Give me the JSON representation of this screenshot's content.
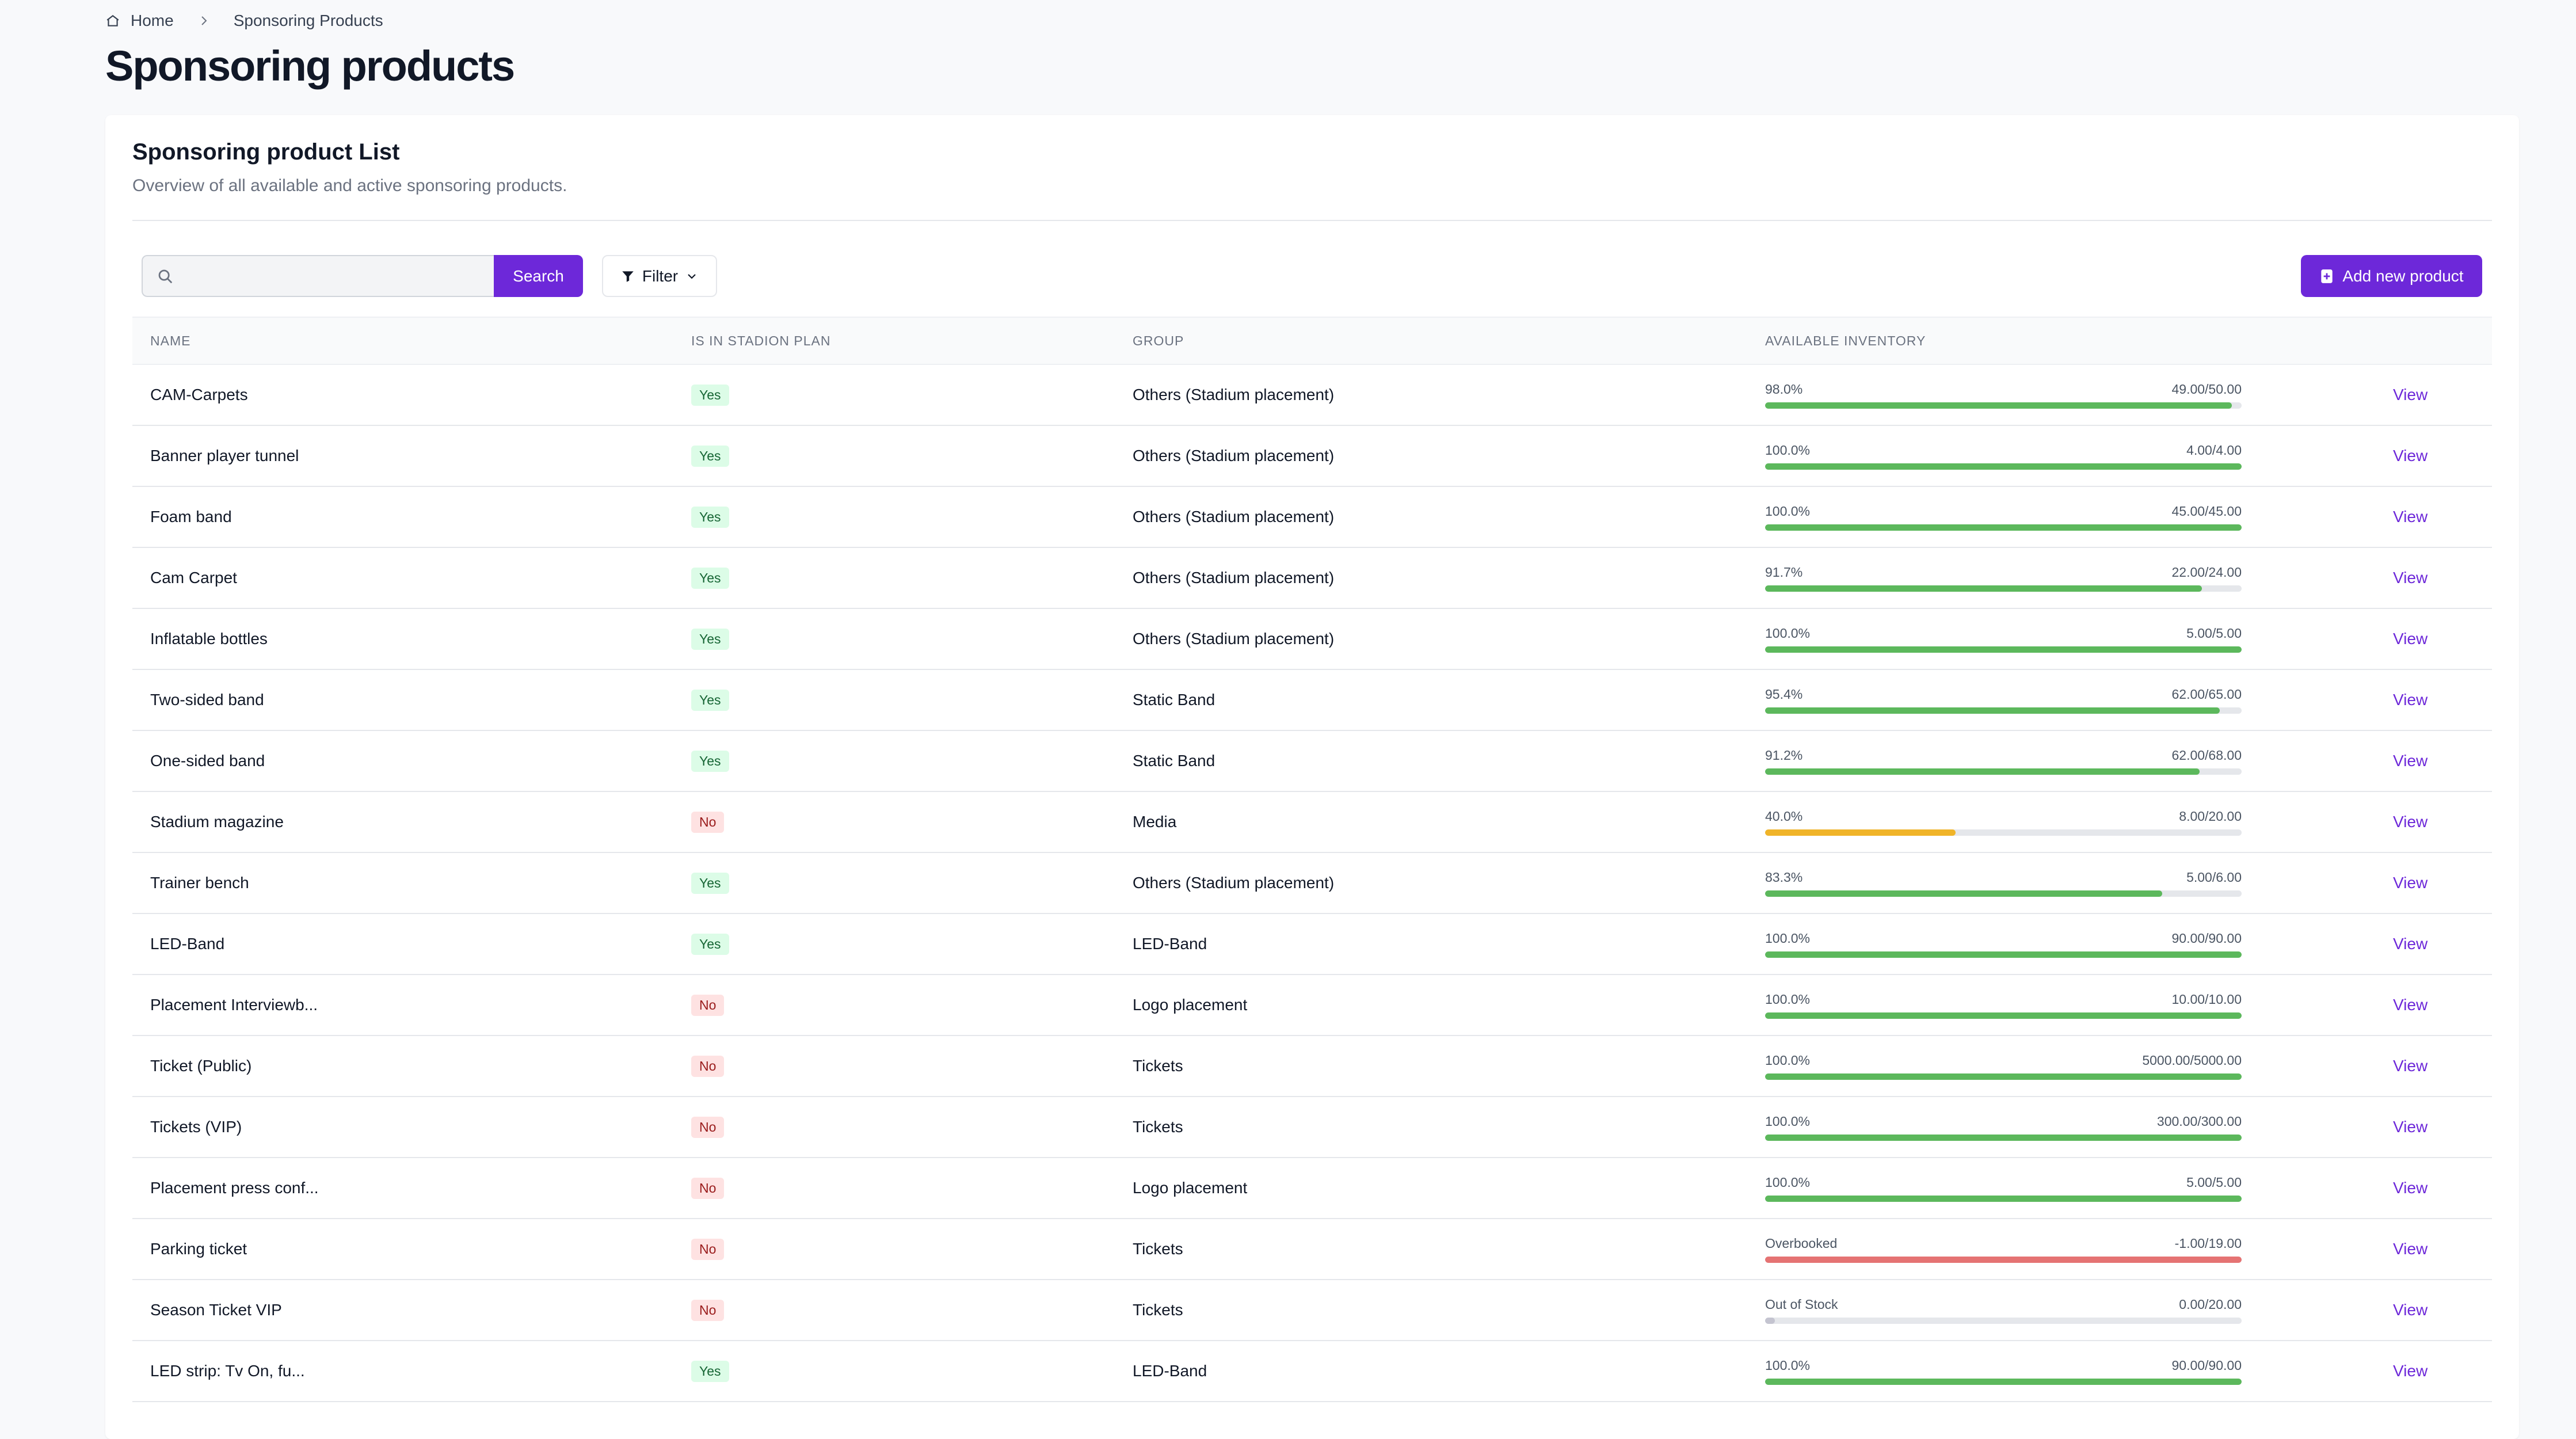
{
  "breadcrumb": {
    "home": "Home",
    "current": "Sponsoring Products"
  },
  "page": {
    "title": "Sponsoring products"
  },
  "card": {
    "title": "Sponsoring product List",
    "subtitle": "Overview of all available and active sponsoring products."
  },
  "toolbar": {
    "search_value": "",
    "search_label": "Search",
    "filter_label": "Filter",
    "add_label": "Add new product"
  },
  "colors": {
    "accent": "#6d28d9",
    "green": "#5cb85c",
    "yellow": "#f0b429",
    "red": "#e57373",
    "gray": "#c4c4d0"
  },
  "table": {
    "headers": {
      "name": "Name",
      "plan": "Is in stadion plan",
      "group": "Group",
      "inventory": "Available inventory"
    },
    "view_label": "View",
    "rows": [
      {
        "name": "CAM-Carpets",
        "plan": "Yes",
        "group": "Others (Stadium placement)",
        "pct_label": "98.0%",
        "qty": "49.00/50.00",
        "fill": 0.98,
        "status": "green"
      },
      {
        "name": "Banner player tunnel",
        "plan": "Yes",
        "group": "Others (Stadium placement)",
        "pct_label": "100.0%",
        "qty": "4.00/4.00",
        "fill": 1.0,
        "status": "green"
      },
      {
        "name": "Foam band",
        "plan": "Yes",
        "group": "Others (Stadium placement)",
        "pct_label": "100.0%",
        "qty": "45.00/45.00",
        "fill": 1.0,
        "status": "green"
      },
      {
        "name": "Cam Carpet",
        "plan": "Yes",
        "group": "Others (Stadium placement)",
        "pct_label": "91.7%",
        "qty": "22.00/24.00",
        "fill": 0.917,
        "status": "green"
      },
      {
        "name": "Inflatable bottles",
        "plan": "Yes",
        "group": "Others (Stadium placement)",
        "pct_label": "100.0%",
        "qty": "5.00/5.00",
        "fill": 1.0,
        "status": "green"
      },
      {
        "name": "Two-sided band",
        "plan": "Yes",
        "group": "Static Band",
        "pct_label": "95.4%",
        "qty": "62.00/65.00",
        "fill": 0.954,
        "status": "green"
      },
      {
        "name": "One-sided band",
        "plan": "Yes",
        "group": "Static Band",
        "pct_label": "91.2%",
        "qty": "62.00/68.00",
        "fill": 0.912,
        "status": "green"
      },
      {
        "name": "Stadium magazine",
        "plan": "No",
        "group": "Media",
        "pct_label": "40.0%",
        "qty": "8.00/20.00",
        "fill": 0.4,
        "status": "yellow"
      },
      {
        "name": "Trainer bench",
        "plan": "Yes",
        "group": "Others (Stadium placement)",
        "pct_label": "83.3%",
        "qty": "5.00/6.00",
        "fill": 0.833,
        "status": "green"
      },
      {
        "name": "LED-Band",
        "plan": "Yes",
        "group": "LED-Band",
        "pct_label": "100.0%",
        "qty": "90.00/90.00",
        "fill": 1.0,
        "status": "green"
      },
      {
        "name": "Placement Interviewb...",
        "plan": "No",
        "group": "Logo placement",
        "pct_label": "100.0%",
        "qty": "10.00/10.00",
        "fill": 1.0,
        "status": "green"
      },
      {
        "name": "Ticket (Public)",
        "plan": "No",
        "group": "Tickets",
        "pct_label": "100.0%",
        "qty": "5000.00/5000.00",
        "fill": 1.0,
        "status": "green"
      },
      {
        "name": "Tickets (VIP)",
        "plan": "No",
        "group": "Tickets",
        "pct_label": "100.0%",
        "qty": "300.00/300.00",
        "fill": 1.0,
        "status": "green"
      },
      {
        "name": "Placement press conf...",
        "plan": "No",
        "group": "Logo placement",
        "pct_label": "100.0%",
        "qty": "5.00/5.00",
        "fill": 1.0,
        "status": "green"
      },
      {
        "name": "Parking ticket",
        "plan": "No",
        "group": "Tickets",
        "pct_label": "Overbooked",
        "qty": "-1.00/19.00",
        "fill": 1.0,
        "status": "red"
      },
      {
        "name": "Season Ticket VIP",
        "plan": "No",
        "group": "Tickets",
        "pct_label": "Out of Stock",
        "qty": "0.00/20.00",
        "fill": 0.02,
        "status": "gray"
      },
      {
        "name": "LED strip: Tv On, fu...",
        "plan": "Yes",
        "group": "LED-Band",
        "pct_label": "100.0%",
        "qty": "90.00/90.00",
        "fill": 1.0,
        "status": "green"
      }
    ]
  }
}
